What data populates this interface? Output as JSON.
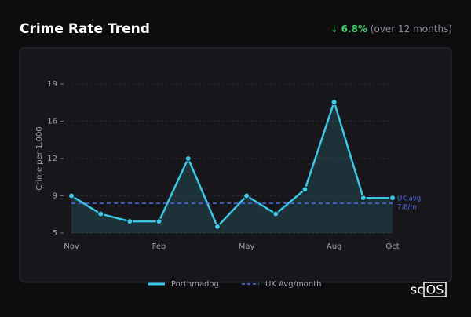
{
  "chart_data": {
    "type": "line",
    "title": "Crime Rate Trend",
    "change": {
      "arrow": "↓",
      "value": "6.8%",
      "note": "(over 12 months)"
    },
    "y_label": "Crime per 1,000",
    "categories": [
      "Nov",
      null,
      null,
      "Feb",
      null,
      null,
      "May",
      null,
      null,
      "Aug",
      null,
      "Oct"
    ],
    "series": [
      {
        "name": "Porthmadog",
        "color": "#3cc8e4",
        "values": [
          8.5,
          6.8,
          6.1,
          6.1,
          12.0,
          5.6,
          8.5,
          6.8,
          9.1,
          17.3,
          8.3,
          8.3
        ]
      }
    ],
    "reference": {
      "name": "UK Avg/month",
      "color": "#4f6ef0",
      "value": 7.8,
      "labels": [
        "UK avg",
        "7.8/m"
      ]
    },
    "ylim": [
      5,
      19
    ],
    "yticks": [
      5,
      {
        "value": 8.5,
        "label": "9"
      },
      12,
      {
        "value": 15.5,
        "label": "16"
      },
      19
    ],
    "grid": true,
    "brand": {
      "prefix": "sc",
      "boxed": "OS"
    }
  }
}
